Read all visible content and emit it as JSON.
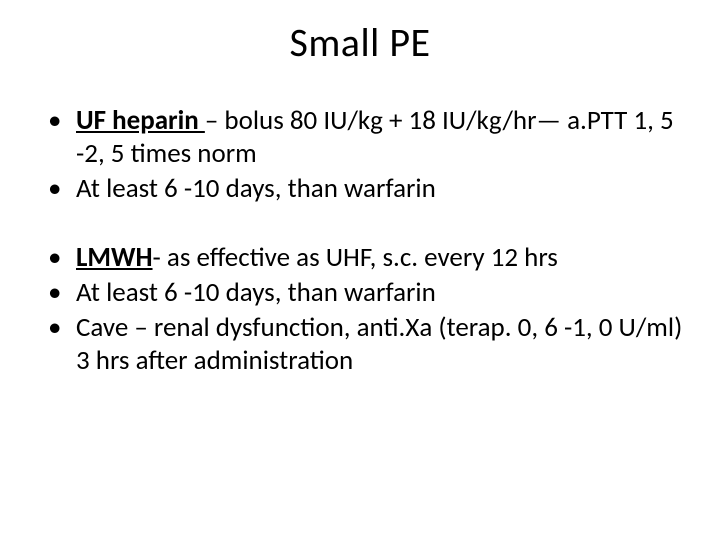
{
  "slide": {
    "title": "Small PE",
    "title_fontsize": 40,
    "body_fontsize": 27,
    "background_color": "#ffffff",
    "text_color": "#000000",
    "bullets_group1": [
      {
        "lead_bold": "UF heparin ",
        "rest": "– bolus 80 IU/kg + 18 IU/kg/hr— a.PTT 1, 5 -2, 5 times norm"
      },
      {
        "lead_bold": "",
        "rest": "At least 6 -10 days, than warfarin"
      }
    ],
    "bullets_group2": [
      {
        "lead_bold": "LMWH",
        "rest": "- as effective as UHF, s.c. every 12 hrs"
      },
      {
        "lead_bold": "",
        "rest": "At least 6 -10 days, than warfarin"
      },
      {
        "lead_bold": "",
        "rest": "Cave – renal dysfunction, anti.Xa (terap. 0, 6 -1, 0 U/ml) 3 hrs after administration"
      }
    ]
  }
}
